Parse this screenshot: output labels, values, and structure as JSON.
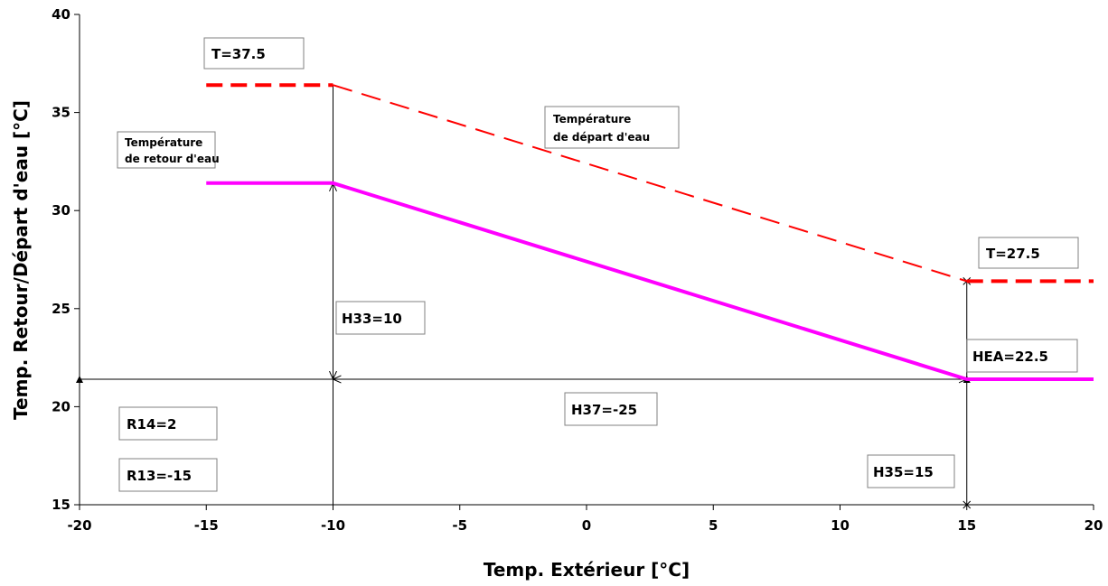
{
  "chart_data": {
    "type": "line",
    "xlabel": "Temp. Extérieur [°C]",
    "ylabel": "Temp. Retour/Départ d'eau [°C]",
    "xlim": [
      -20,
      20
    ],
    "ylim": [
      15,
      40
    ],
    "x_ticks": [
      "-20",
      "-15",
      "-10",
      "-5",
      "0",
      "5",
      "10",
      "15",
      "20"
    ],
    "y_ticks": [
      "15",
      "20",
      "25",
      "30",
      "35",
      "40"
    ],
    "grid": false,
    "series": [
      {
        "name": "Température de départ d'eau",
        "color": "#ff0000",
        "style": "dashed",
        "points": [
          [
            -15,
            36.4
          ],
          [
            -10,
            36.4
          ],
          [
            15,
            26.4
          ],
          [
            20,
            26.4
          ]
        ]
      },
      {
        "name": "Température de retour d'eau",
        "color": "#ff00ff",
        "style": "solid",
        "points": [
          [
            -15,
            31.4
          ],
          [
            -10,
            31.4
          ],
          [
            15,
            21.4
          ],
          [
            20,
            21.4
          ]
        ]
      }
    ],
    "annotations": {
      "t_max": "T=37.5",
      "t_min": "T=27.5",
      "depart_line1": "Température",
      "depart_line2": "de départ d'eau",
      "retour_line1": "Température",
      "retour_line2": "de retour d'eau",
      "h33": "H33=10",
      "h37": "H37=-25",
      "h35": "H35=15",
      "hea": "HEA=22.5",
      "r14": "R14=2",
      "r13": "R13=-15"
    }
  }
}
